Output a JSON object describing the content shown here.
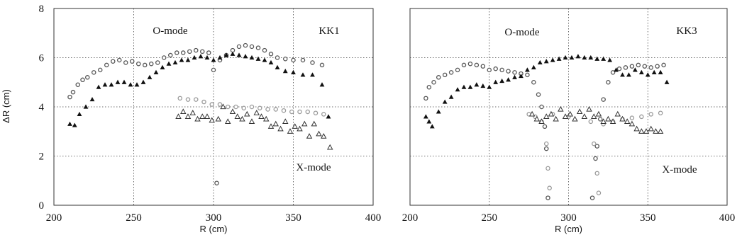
{
  "y_axis_label": "ΔR (cm)",
  "chart_data": [
    {
      "type": "scatter",
      "panel_label": "KK1",
      "xlabel": "R (cm)",
      "ylabel": "ΔR (cm)",
      "xlim": [
        200,
        400
      ],
      "ylim": [
        0,
        8
      ],
      "x_ticks": [
        "200",
        "250",
        "300",
        "350",
        "400"
      ],
      "y_ticks": [
        "0",
        "2",
        "4",
        "6",
        "8"
      ],
      "grid": true,
      "annotations": [
        "O-mode",
        "X-mode"
      ],
      "series": [
        {
          "marker": "open-circle",
          "color": "#555555",
          "points": [
            [
              210,
              4.4
            ],
            [
              212,
              4.6
            ],
            [
              215,
              4.9
            ],
            [
              218,
              5.1
            ],
            [
              221,
              5.2
            ],
            [
              225,
              5.4
            ],
            [
              229,
              5.5
            ],
            [
              233,
              5.7
            ],
            [
              237,
              5.85
            ],
            [
              241,
              5.9
            ],
            [
              245,
              5.8
            ],
            [
              249,
              5.85
            ],
            [
              253,
              5.75
            ],
            [
              257,
              5.7
            ],
            [
              261,
              5.75
            ],
            [
              265,
              5.8
            ],
            [
              269,
              6.0
            ],
            [
              273,
              6.1
            ],
            [
              277,
              6.2
            ],
            [
              281,
              6.2
            ],
            [
              285,
              6.25
            ],
            [
              289,
              6.3
            ],
            [
              293,
              6.25
            ],
            [
              297,
              6.2
            ],
            [
              300,
              5.5
            ],
            [
              302,
              0.9
            ],
            [
              304,
              5.9
            ],
            [
              308,
              6.1
            ],
            [
              312,
              6.3
            ],
            [
              316,
              6.45
            ],
            [
              320,
              6.5
            ],
            [
              324,
              6.45
            ],
            [
              328,
              6.4
            ],
            [
              332,
              6.3
            ],
            [
              336,
              6.15
            ],
            [
              340,
              6.0
            ],
            [
              345,
              5.95
            ],
            [
              350,
              5.9
            ],
            [
              356,
              5.9
            ],
            [
              362,
              5.8
            ],
            [
              368,
              5.7
            ]
          ]
        },
        {
          "marker": "filled-triangle",
          "color": "#111111",
          "points": [
            [
              210,
              3.3
            ],
            [
              213,
              3.25
            ],
            [
              216,
              3.7
            ],
            [
              220,
              4.0
            ],
            [
              224,
              4.3
            ],
            [
              228,
              4.8
            ],
            [
              232,
              4.9
            ],
            [
              236,
              4.9
            ],
            [
              240,
              5.0
            ],
            [
              244,
              5.0
            ],
            [
              248,
              4.9
            ],
            [
              252,
              4.9
            ],
            [
              256,
              5.0
            ],
            [
              260,
              5.2
            ],
            [
              264,
              5.4
            ],
            [
              268,
              5.6
            ],
            [
              272,
              5.75
            ],
            [
              276,
              5.8
            ],
            [
              280,
              5.9
            ],
            [
              284,
              5.9
            ],
            [
              288,
              6.0
            ],
            [
              292,
              6.05
            ],
            [
              296,
              6.0
            ],
            [
              300,
              5.9
            ],
            [
              304,
              6.0
            ],
            [
              308,
              6.1
            ],
            [
              312,
              6.15
            ],
            [
              316,
              6.1
            ],
            [
              320,
              6.05
            ],
            [
              324,
              6.0
            ],
            [
              328,
              5.95
            ],
            [
              332,
              5.9
            ],
            [
              336,
              5.8
            ],
            [
              340,
              5.6
            ],
            [
              345,
              5.45
            ],
            [
              350,
              5.4
            ],
            [
              356,
              5.3
            ],
            [
              362,
              5.3
            ],
            [
              368,
              4.9
            ],
            [
              372,
              3.6
            ]
          ]
        },
        {
          "marker": "light-open-circle",
          "color": "#9a9a9a",
          "points": [
            [
              279,
              4.35
            ],
            [
              284,
              4.3
            ],
            [
              289,
              4.3
            ],
            [
              294,
              4.2
            ],
            [
              299,
              4.1
            ],
            [
              304,
              4.1
            ],
            [
              309,
              4.0
            ],
            [
              314,
              4.0
            ],
            [
              319,
              3.95
            ],
            [
              324,
              4.0
            ],
            [
              329,
              3.95
            ],
            [
              334,
              3.9
            ],
            [
              339,
              3.9
            ],
            [
              344,
              3.85
            ],
            [
              349,
              3.8
            ],
            [
              354,
              3.8
            ],
            [
              359,
              3.8
            ],
            [
              364,
              3.75
            ],
            [
              369,
              3.7
            ]
          ]
        },
        {
          "marker": "open-triangle",
          "color": "#333333",
          "points": [
            [
              278,
              3.6
            ],
            [
              281,
              3.8
            ],
            [
              284,
              3.6
            ],
            [
              287,
              3.75
            ],
            [
              290,
              3.5
            ],
            [
              293,
              3.6
            ],
            [
              296,
              3.6
            ],
            [
              299,
              3.45
            ],
            [
              303,
              3.5
            ],
            [
              306,
              4.0
            ],
            [
              309,
              3.4
            ],
            [
              312,
              3.8
            ],
            [
              315,
              3.6
            ],
            [
              318,
              3.5
            ],
            [
              321,
              3.7
            ],
            [
              324,
              3.4
            ],
            [
              327,
              3.75
            ],
            [
              330,
              3.6
            ],
            [
              333,
              3.5
            ],
            [
              336,
              3.2
            ],
            [
              339,
              3.3
            ],
            [
              342,
              3.1
            ],
            [
              345,
              3.4
            ],
            [
              348,
              3.0
            ],
            [
              351,
              3.2
            ],
            [
              354,
              3.1
            ],
            [
              357,
              3.3
            ],
            [
              360,
              2.8
            ],
            [
              363,
              3.3
            ],
            [
              366,
              2.9
            ],
            [
              369,
              2.8
            ],
            [
              373,
              2.35
            ]
          ]
        }
      ]
    },
    {
      "type": "scatter",
      "panel_label": "KK3",
      "xlabel": "R (cm)",
      "ylabel": "",
      "xlim": [
        200,
        400
      ],
      "ylim": [
        0,
        8
      ],
      "x_ticks": [
        "200",
        "250",
        "300",
        "350",
        "400"
      ],
      "y_ticks": [],
      "grid": true,
      "annotations": [
        "O-mode",
        "X-mode"
      ],
      "series": [
        {
          "marker": "open-circle",
          "color": "#555555",
          "points": [
            [
              210,
              4.35
            ],
            [
              212,
              4.8
            ],
            [
              215,
              5.0
            ],
            [
              218,
              5.2
            ],
            [
              222,
              5.3
            ],
            [
              226,
              5.4
            ],
            [
              230,
              5.5
            ],
            [
              234,
              5.7
            ],
            [
              238,
              5.75
            ],
            [
              242,
              5.7
            ],
            [
              246,
              5.65
            ],
            [
              250,
              5.5
            ],
            [
              254,
              5.55
            ],
            [
              258,
              5.5
            ],
            [
              262,
              5.45
            ],
            [
              266,
              5.4
            ],
            [
              270,
              5.35
            ],
            [
              274,
              5.3
            ],
            [
              278,
              5.0
            ],
            [
              281,
              4.5
            ],
            [
              283,
              4.0
            ],
            [
              285,
              3.2
            ],
            [
              286,
              2.3
            ],
            [
              287,
              0.3
            ],
            [
              315,
              0.3
            ],
            [
              317,
              1.9
            ],
            [
              318,
              2.4
            ],
            [
              320,
              3.5
            ],
            [
              322,
              4.3
            ],
            [
              325,
              5.0
            ],
            [
              328,
              5.4
            ],
            [
              332,
              5.55
            ],
            [
              336,
              5.6
            ],
            [
              340,
              5.65
            ],
            [
              344,
              5.7
            ],
            [
              348,
              5.65
            ],
            [
              352,
              5.6
            ],
            [
              356,
              5.65
            ],
            [
              360,
              5.7
            ]
          ]
        },
        {
          "marker": "filled-triangle",
          "color": "#111111",
          "points": [
            [
              210,
              3.6
            ],
            [
              212,
              3.4
            ],
            [
              214,
              3.2
            ],
            [
              218,
              3.8
            ],
            [
              222,
              4.2
            ],
            [
              226,
              4.4
            ],
            [
              230,
              4.7
            ],
            [
              234,
              4.8
            ],
            [
              238,
              4.8
            ],
            [
              242,
              4.9
            ],
            [
              246,
              4.85
            ],
            [
              250,
              4.8
            ],
            [
              254,
              5.0
            ],
            [
              258,
              5.05
            ],
            [
              262,
              5.1
            ],
            [
              266,
              5.2
            ],
            [
              270,
              5.25
            ],
            [
              274,
              5.5
            ],
            [
              278,
              5.6
            ],
            [
              282,
              5.8
            ],
            [
              286,
              5.85
            ],
            [
              290,
              5.9
            ],
            [
              294,
              5.95
            ],
            [
              298,
              6.0
            ],
            [
              302,
              6.0
            ],
            [
              306,
              6.05
            ],
            [
              310,
              6.0
            ],
            [
              314,
              6.0
            ],
            [
              318,
              5.95
            ],
            [
              322,
              5.95
            ],
            [
              326,
              5.9
            ],
            [
              330,
              5.5
            ],
            [
              334,
              5.3
            ],
            [
              338,
              5.3
            ],
            [
              342,
              5.5
            ],
            [
              346,
              5.4
            ],
            [
              350,
              5.3
            ],
            [
              354,
              5.4
            ],
            [
              358,
              5.4
            ],
            [
              362,
              5.0
            ]
          ]
        },
        {
          "marker": "light-open-circle",
          "color": "#9a9a9a",
          "points": [
            [
              275,
              3.7
            ],
            [
              279,
              3.6
            ],
            [
              283,
              3.4
            ],
            [
              286,
              2.5
            ],
            [
              287,
              1.5
            ],
            [
              288,
              0.7
            ],
            [
              290,
              3.7
            ],
            [
              300,
              3.6
            ],
            [
              314,
              3.4
            ],
            [
              316,
              2.5
            ],
            [
              318,
              1.3
            ],
            [
              319,
              0.5
            ],
            [
              322,
              3.3
            ],
            [
              328,
              3.4
            ],
            [
              334,
              3.5
            ],
            [
              340,
              3.55
            ],
            [
              346,
              3.6
            ],
            [
              352,
              3.7
            ],
            [
              358,
              3.75
            ]
          ]
        },
        {
          "marker": "open-triangle",
          "color": "#333333",
          "points": [
            [
              277,
              3.7
            ],
            [
              280,
              3.5
            ],
            [
              283,
              3.4
            ],
            [
              286,
              3.6
            ],
            [
              289,
              3.7
            ],
            [
              292,
              3.5
            ],
            [
              295,
              3.9
            ],
            [
              298,
              3.6
            ],
            [
              301,
              3.7
            ],
            [
              304,
              3.5
            ],
            [
              307,
              3.8
            ],
            [
              310,
              3.6
            ],
            [
              313,
              3.9
            ],
            [
              316,
              3.6
            ],
            [
              319,
              3.7
            ],
            [
              322,
              3.4
            ],
            [
              325,
              3.5
            ],
            [
              328,
              3.4
            ],
            [
              331,
              3.7
            ],
            [
              334,
              3.5
            ],
            [
              337,
              3.4
            ],
            [
              340,
              3.3
            ],
            [
              343,
              3.1
            ],
            [
              346,
              3.0
            ],
            [
              349,
              3.0
            ],
            [
              352,
              3.1
            ],
            [
              355,
              3.0
            ],
            [
              358,
              3.0
            ]
          ]
        }
      ]
    }
  ]
}
